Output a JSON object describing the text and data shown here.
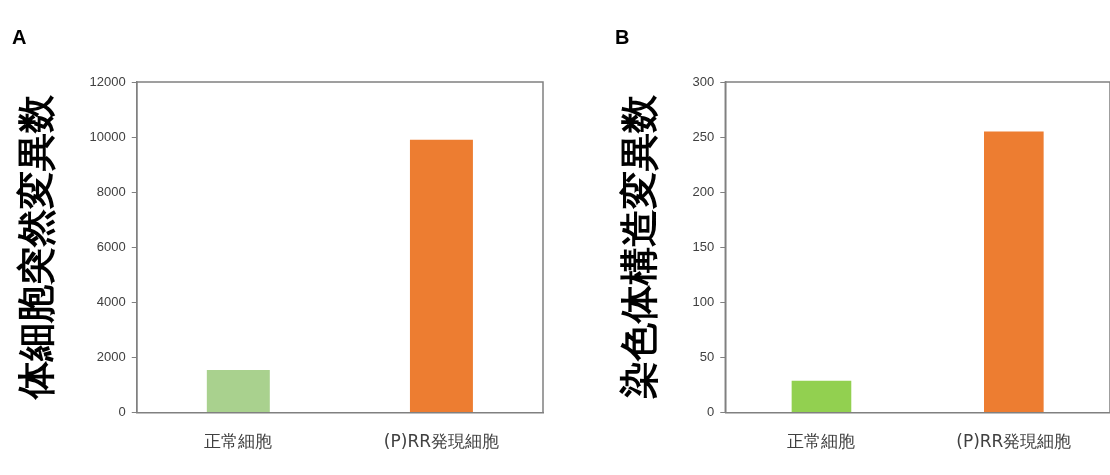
{
  "chart_data": [
    {
      "type": "bar",
      "title": "A",
      "ylabel": "体細胞突然変異数",
      "categories": [
        "正常細胞",
        "(P)RR発現細胞"
      ],
      "values": [
        1550,
        9900
      ],
      "colors": [
        "#a9d18e",
        "#ed7d31"
      ],
      "ylim": [
        0,
        12000
      ],
      "yticks": [
        0,
        2000,
        4000,
        6000,
        8000,
        10000,
        12000
      ]
    },
    {
      "type": "bar",
      "title": "B",
      "ylabel": "染色体構造変異数",
      "categories": [
        "正常細胞",
        "(P)RR発現細胞"
      ],
      "values": [
        29,
        255
      ],
      "colors": [
        "#92d050",
        "#ed7d31"
      ],
      "ylim": [
        0,
        300
      ],
      "yticks": [
        0,
        50,
        100,
        150,
        200,
        250,
        300
      ]
    }
  ]
}
